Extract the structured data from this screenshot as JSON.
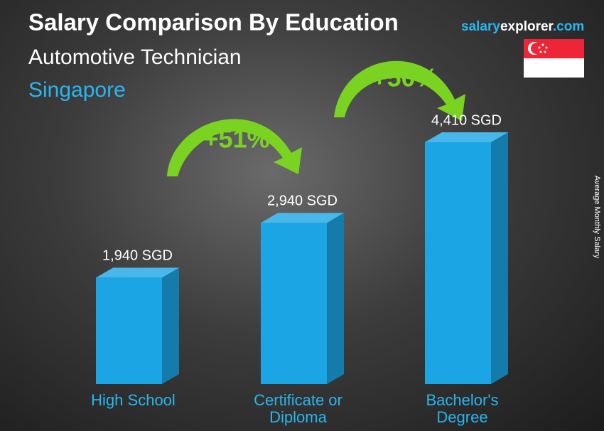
{
  "chart_data": {
    "type": "bar",
    "title": "Salary Comparison By Education",
    "subtitle": "Automotive Technician",
    "location": "Singapore",
    "brand": [
      "salary",
      "explorer",
      ".com"
    ],
    "y_label": "Average Monthly Salary",
    "categories": [
      "High School",
      "Certificate or Diploma",
      "Bachelor's Degree"
    ],
    "values": [
      1940,
      2940,
      4410
    ],
    "value_labels": [
      "1,940 SGD",
      "2,940 SGD",
      "4,410 SGD"
    ],
    "color": "#1ba5e4",
    "annotations": [
      "+51%",
      "+50%"
    ]
  }
}
